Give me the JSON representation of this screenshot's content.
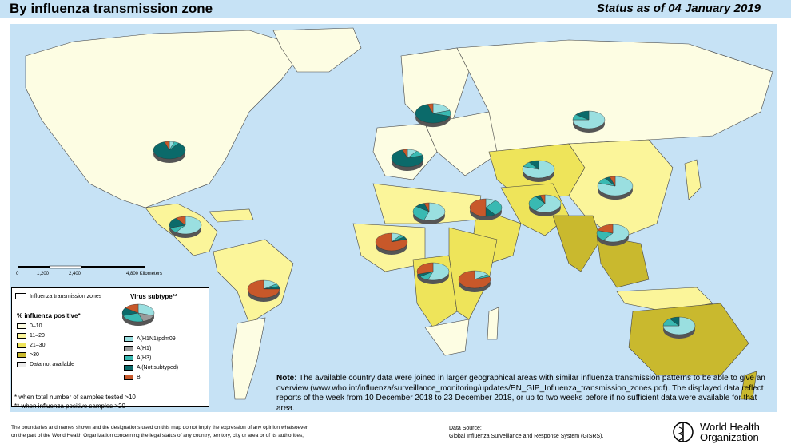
{
  "header": {
    "title": "By influenza transmission zone",
    "status": "Status as of 04 January 2019"
  },
  "scale": {
    "ticks": [
      "0",
      "1,200",
      "2,400",
      "4,800 Kilometers"
    ]
  },
  "legend": {
    "zones_label": "Influenza transmission zones",
    "positive_title": "% influenza positive*",
    "positive_items": [
      {
        "label": "0–10",
        "color": "#fdfde3"
      },
      {
        "label": "11–20",
        "color": "#fbf59a"
      },
      {
        "label": "21–30",
        "color": "#eee45a"
      },
      {
        "label": ">30",
        "color": "#c9b92e"
      },
      {
        "label": "Data not available",
        "color": "#ececec"
      }
    ],
    "subtype_title": "Virus subtype**",
    "subtype_items": [
      {
        "label": "A(H1N1)pdm09",
        "color": "#9adfe0"
      },
      {
        "label": "A(H1)",
        "color": "#9a9a9a"
      },
      {
        "label": "A(H3)",
        "color": "#39b9b2"
      },
      {
        "label": "A (Not subtyped)",
        "color": "#0b6a6a"
      },
      {
        "label": "B",
        "color": "#c8582a"
      }
    ]
  },
  "note": {
    "label": "Note:",
    "text": "The available country data were joined in larger geographical areas with similar influenza transmission patterns to be able to give an overview (www.who.int/influenza/surveillance_monitoring/updates/EN_GIP_Influenza_transmission_zones.pdf). The displayed data reflect reports of the week from 10 December 2018 to 23 December 2018, or up to two weeks before if no sufficient data were available for that area."
  },
  "footnotes": {
    "line1": "*  when total number of samples tested >10",
    "line2": "** when influenza positive samples >20"
  },
  "disclaimer": {
    "line1": "The boundaries and names shown and the designations used on this map do not imply the expression of any opinion whatsoever",
    "line2": "on the part of the World Health Organization concerning the legal status of any country, territory, city or area or of its authorities,"
  },
  "datasource": {
    "line1": "Data Source:",
    "line2": "Global Influenza Surveillance and Response System (GISRS),"
  },
  "who": {
    "line1": "World Health",
    "line2": "Organization"
  },
  "pies": [
    {
      "name": "north-america",
      "shares": [
        0.05,
        0.0,
        0.05,
        0.85,
        0.05
      ]
    },
    {
      "name": "central-america",
      "shares": [
        0.6,
        0.0,
        0.1,
        0.2,
        0.1
      ]
    },
    {
      "name": "south-america",
      "shares": [
        0.15,
        0.0,
        0.05,
        0.05,
        0.75
      ]
    },
    {
      "name": "northern-europe",
      "shares": [
        0.2,
        0.0,
        0.1,
        0.65,
        0.05
      ]
    },
    {
      "name": "western-europe",
      "shares": [
        0.1,
        0.0,
        0.1,
        0.75,
        0.05
      ]
    },
    {
      "name": "eastern-europe",
      "shares": [
        0.75,
        0.0,
        0.1,
        0.15,
        0.0
      ]
    },
    {
      "name": "central-asia",
      "shares": [
        0.8,
        0.0,
        0.1,
        0.1,
        0.0
      ]
    },
    {
      "name": "east-asia",
      "shares": [
        0.8,
        0.0,
        0.1,
        0.05,
        0.05
      ]
    },
    {
      "name": "western-asia",
      "shares": [
        0.6,
        0.0,
        0.3,
        0.05,
        0.05
      ]
    },
    {
      "name": "northern-africa",
      "shares": [
        0.55,
        0.0,
        0.3,
        0.1,
        0.05
      ]
    },
    {
      "name": "middle-east",
      "shares": [
        0.1,
        0.0,
        0.3,
        0.1,
        0.5
      ]
    },
    {
      "name": "west-africa",
      "shares": [
        0.1,
        0.0,
        0.05,
        0.05,
        0.8
      ]
    },
    {
      "name": "middle-africa",
      "shares": [
        0.55,
        0.0,
        0.1,
        0.05,
        0.3
      ]
    },
    {
      "name": "east-africa",
      "shares": [
        0.15,
        0.0,
        0.05,
        0.0,
        0.8
      ]
    },
    {
      "name": "south-east-asia",
      "shares": [
        0.6,
        0.0,
        0.2,
        0.0,
        0.2
      ]
    },
    {
      "name": "oceania",
      "shares": [
        0.75,
        0.0,
        0.15,
        0.1,
        0.0
      ]
    }
  ]
}
